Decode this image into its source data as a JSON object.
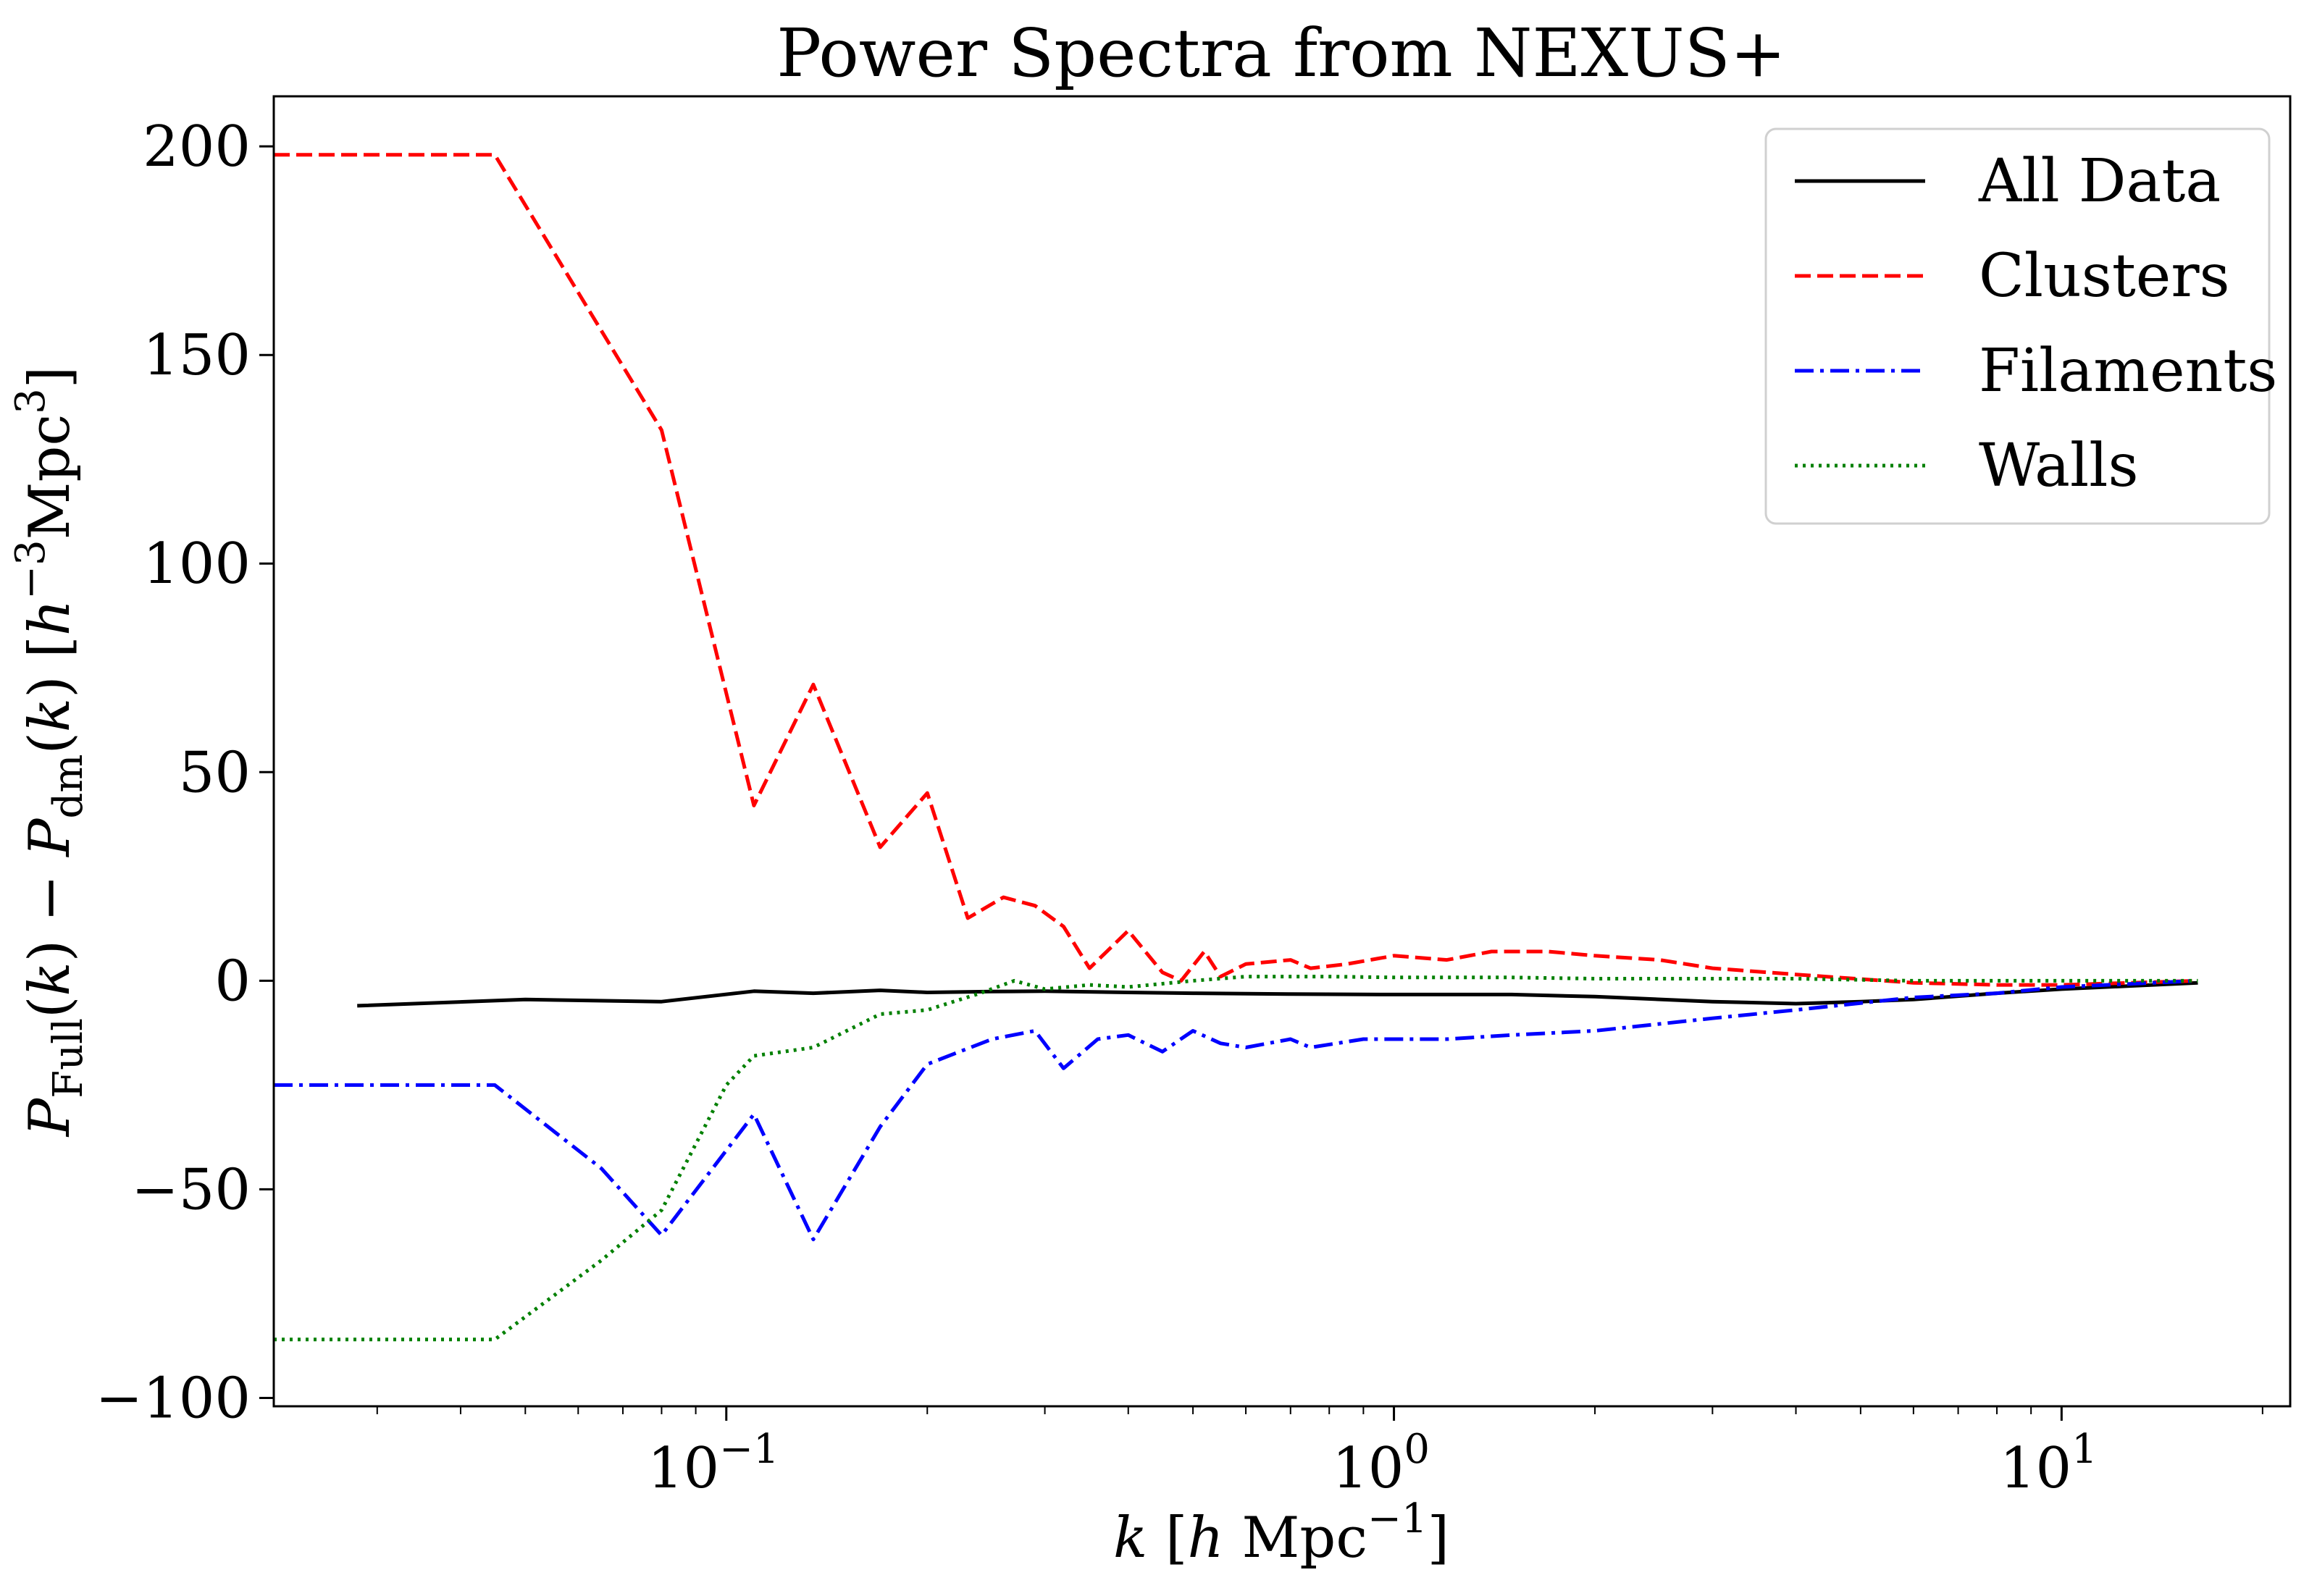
{
  "chart_data": {
    "type": "line",
    "title": "Power Spectra from NEXUS+",
    "xlabel": "k [h Mpc⁻¹]",
    "ylabel": "P_Full(k) − P_dm(k) [h⁻³Mpc³]",
    "xscale": "log",
    "xlim": [
      0.021,
      22
    ],
    "ylim": [
      -102,
      212
    ],
    "grid": false,
    "legend": "top-right",
    "x_ticks": [
      {
        "value": 0.1,
        "label_base": "10",
        "label_exp": "−1"
      },
      {
        "value": 1,
        "label_base": "10",
        "label_exp": "0"
      },
      {
        "value": 10,
        "label_base": "10",
        "label_exp": "1"
      }
    ],
    "y_ticks": [
      {
        "value": 200,
        "label": "200"
      },
      {
        "value": 150,
        "label": "150"
      },
      {
        "value": 100,
        "label": "100"
      },
      {
        "value": 50,
        "label": "50"
      },
      {
        "value": 0,
        "label": "0"
      },
      {
        "value": -50,
        "label": "−50"
      },
      {
        "value": -100,
        "label": "−100"
      }
    ],
    "series": [
      {
        "name": "All Data",
        "color": "#000000",
        "dash": "solid",
        "points": [
          [
            0.028,
            -6
          ],
          [
            0.05,
            -4.5
          ],
          [
            0.08,
            -5
          ],
          [
            0.11,
            -2.5
          ],
          [
            0.135,
            -3
          ],
          [
            0.17,
            -2.3
          ],
          [
            0.2,
            -2.8
          ],
          [
            0.25,
            -2.6
          ],
          [
            0.3,
            -2.5
          ],
          [
            0.4,
            -2.8
          ],
          [
            0.5,
            -3
          ],
          [
            0.7,
            -3.2
          ],
          [
            1.0,
            -3.3
          ],
          [
            1.5,
            -3.3
          ],
          [
            2.0,
            -3.8
          ],
          [
            3.0,
            -5
          ],
          [
            4.0,
            -5.5
          ],
          [
            5.0,
            -5
          ],
          [
            6.0,
            -4.5
          ],
          [
            8.0,
            -3
          ],
          [
            10.0,
            -2
          ],
          [
            16.0,
            -0.5
          ]
        ]
      },
      {
        "name": "Clusters",
        "color": "#ff0000",
        "dash": "dashed",
        "points": [
          [
            0.021,
            198
          ],
          [
            0.045,
            198
          ],
          [
            0.08,
            132
          ],
          [
            0.11,
            42
          ],
          [
            0.135,
            71
          ],
          [
            0.17,
            32
          ],
          [
            0.2,
            45
          ],
          [
            0.23,
            15
          ],
          [
            0.26,
            20
          ],
          [
            0.29,
            18
          ],
          [
            0.32,
            13
          ],
          [
            0.35,
            3
          ],
          [
            0.4,
            12
          ],
          [
            0.45,
            2
          ],
          [
            0.48,
            0
          ],
          [
            0.52,
            7
          ],
          [
            0.55,
            1
          ],
          [
            0.6,
            4
          ],
          [
            0.7,
            5
          ],
          [
            0.75,
            3
          ],
          [
            0.85,
            4
          ],
          [
            1.0,
            6
          ],
          [
            1.2,
            5
          ],
          [
            1.4,
            7
          ],
          [
            1.7,
            7
          ],
          [
            2.0,
            6
          ],
          [
            2.5,
            5
          ],
          [
            3.0,
            3
          ],
          [
            4.0,
            1.5
          ],
          [
            6.0,
            -0.5
          ],
          [
            8.0,
            -1
          ],
          [
            10.0,
            -1
          ],
          [
            16.0,
            0
          ]
        ]
      },
      {
        "name": "Filaments",
        "color": "#0000ff",
        "dash": "dashdot",
        "points": [
          [
            0.021,
            -25
          ],
          [
            0.045,
            -25
          ],
          [
            0.065,
            -45
          ],
          [
            0.08,
            -61
          ],
          [
            0.11,
            -32
          ],
          [
            0.135,
            -62
          ],
          [
            0.17,
            -35
          ],
          [
            0.2,
            -20
          ],
          [
            0.25,
            -14
          ],
          [
            0.29,
            -12
          ],
          [
            0.32,
            -21
          ],
          [
            0.36,
            -14
          ],
          [
            0.4,
            -13
          ],
          [
            0.45,
            -17
          ],
          [
            0.5,
            -12
          ],
          [
            0.55,
            -15
          ],
          [
            0.6,
            -16
          ],
          [
            0.7,
            -14
          ],
          [
            0.75,
            -16
          ],
          [
            0.9,
            -14
          ],
          [
            1.0,
            -14
          ],
          [
            1.2,
            -14
          ],
          [
            1.5,
            -13
          ],
          [
            2.0,
            -12
          ],
          [
            3.0,
            -9
          ],
          [
            4.0,
            -7
          ],
          [
            6.0,
            -4
          ],
          [
            8.0,
            -3
          ],
          [
            10.0,
            -1.5
          ],
          [
            16.0,
            0
          ]
        ]
      },
      {
        "name": "Walls",
        "color": "#008000",
        "dash": "dotted",
        "points": [
          [
            0.021,
            -86
          ],
          [
            0.045,
            -86
          ],
          [
            0.065,
            -67
          ],
          [
            0.08,
            -55
          ],
          [
            0.1,
            -25
          ],
          [
            0.11,
            -18
          ],
          [
            0.135,
            -16
          ],
          [
            0.17,
            -8
          ],
          [
            0.2,
            -7
          ],
          [
            0.24,
            -3
          ],
          [
            0.27,
            0
          ],
          [
            0.3,
            -2
          ],
          [
            0.35,
            -1
          ],
          [
            0.4,
            -1.5
          ],
          [
            0.5,
            0
          ],
          [
            0.6,
            1
          ],
          [
            0.8,
            1
          ],
          [
            1.0,
            0.8
          ],
          [
            1.5,
            0.8
          ],
          [
            2.0,
            0.5
          ],
          [
            3.0,
            0.5
          ],
          [
            4.0,
            0.5
          ],
          [
            6.0,
            0
          ],
          [
            10.0,
            0
          ],
          [
            16.0,
            0
          ]
        ]
      }
    ]
  }
}
